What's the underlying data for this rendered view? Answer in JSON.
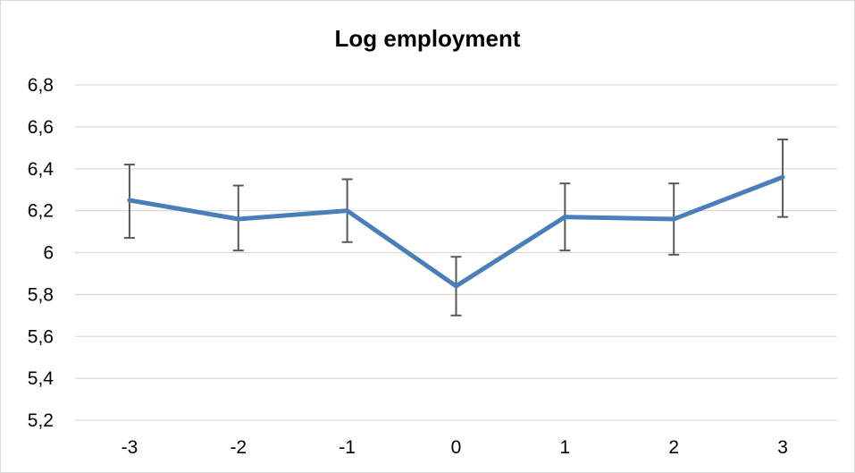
{
  "chart_data": {
    "type": "line",
    "title": "Log employment",
    "x_tick_labels": [
      "-3",
      "-2",
      "-1",
      "0",
      "1",
      "2",
      "3"
    ],
    "y_tick_labels": [
      "5,2",
      "5,4",
      "5,6",
      "5,8",
      "6",
      "6,2",
      "6,4",
      "6,6",
      "6,8"
    ],
    "ylim": [
      5.2,
      6.8
    ],
    "y_ticks": [
      5.2,
      5.4,
      5.6,
      5.8,
      6.0,
      6.2,
      6.4,
      6.6,
      6.8
    ],
    "grid": true,
    "series": [
      {
        "values": [
          6.25,
          6.16,
          6.2,
          5.84,
          6.17,
          6.16,
          6.36
        ],
        "error_low": [
          6.07,
          6.01,
          6.05,
          5.7,
          6.01,
          5.99,
          6.17
        ],
        "error_high": [
          6.42,
          6.32,
          6.35,
          5.98,
          6.33,
          6.33,
          6.54
        ],
        "color": "#4a7ebb"
      }
    ],
    "gridline_color": "#d9d9d9",
    "errorbar_color": "#595959"
  }
}
